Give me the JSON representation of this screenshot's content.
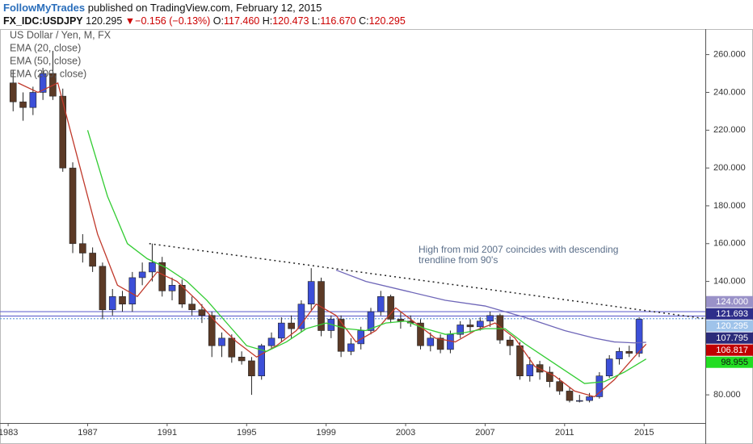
{
  "header": {
    "author": "FollowMyTrades",
    "published": "published on TradingView.com, February 12, 2015"
  },
  "quote": {
    "symbol": "FX_IDC:USDJPY",
    "last": "120.295",
    "arrow": "▼",
    "change": "−0.156 (−0.13%)",
    "fields": [
      {
        "label": "O:",
        "value": "117.460"
      },
      {
        "label": "H:",
        "value": "120.473"
      },
      {
        "label": "L:",
        "value": "116.670"
      },
      {
        "label": "C:",
        "value": "120.295"
      }
    ]
  },
  "chart_data": {
    "type": "candlestick",
    "title": "US Dollar / Yen, M, FX",
    "x": [
      1983.0,
      1983.5,
      1984.0,
      1984.5,
      1985.0,
      1985.5,
      1986.0,
      1986.5,
      1987.0,
      1987.5,
      1988.0,
      1988.5,
      1989.0,
      1989.5,
      1990.0,
      1990.5,
      1991.0,
      1991.5,
      1992.0,
      1992.5,
      1993.0,
      1993.5,
      1994.0,
      1994.5,
      1995.0,
      1995.5,
      1996.0,
      1996.5,
      1997.0,
      1997.5,
      1998.0,
      1998.5,
      1999.0,
      1999.5,
      2000.0,
      2000.5,
      2001.0,
      2001.5,
      2002.0,
      2002.5,
      2003.0,
      2003.5,
      2004.0,
      2004.5,
      2005.0,
      2005.5,
      2006.0,
      2006.5,
      2007.0,
      2007.5,
      2008.0,
      2008.5,
      2009.0,
      2009.5,
      2010.0,
      2010.5,
      2011.0,
      2011.5,
      2012.0,
      2012.5,
      2013.0,
      2013.5,
      2014.0,
      2014.5
    ],
    "open": [
      245,
      235,
      232,
      240,
      250,
      238,
      200,
      160,
      155,
      148,
      125,
      132,
      128,
      142,
      145,
      150,
      135,
      138,
      128,
      125,
      122,
      106,
      110,
      100,
      98,
      90,
      106,
      110,
      118,
      115,
      128,
      140,
      114,
      120,
      103,
      107,
      114,
      124,
      132,
      120,
      119,
      118,
      106,
      110,
      104,
      112,
      117,
      116,
      119,
      122,
      109,
      106,
      90,
      96,
      92,
      87,
      82,
      77,
      77,
      79,
      90,
      99,
      103,
      102
    ],
    "high": [
      252,
      240,
      243,
      253,
      262,
      242,
      203,
      165,
      158,
      150,
      136,
      135,
      145,
      150,
      160,
      153,
      142,
      141,
      132,
      128,
      124,
      113,
      112,
      103,
      100,
      107,
      113,
      121,
      122,
      130,
      147,
      142,
      122,
      122,
      110,
      116,
      126,
      135,
      133,
      124,
      122,
      120,
      113,
      112,
      114,
      119,
      120,
      121,
      124,
      123,
      111,
      108,
      100,
      98,
      95,
      89,
      84,
      80,
      81,
      92,
      101,
      105,
      106,
      121
    ],
    "low": [
      230,
      225,
      228,
      236,
      236,
      198,
      155,
      150,
      145,
      120,
      122,
      124,
      124,
      138,
      140,
      132,
      130,
      126,
      122,
      118,
      100,
      100,
      97,
      96,
      80,
      88,
      104,
      108,
      110,
      113,
      125,
      111,
      110,
      100,
      101,
      104,
      112,
      122,
      118,
      115,
      116,
      104,
      103,
      102,
      102,
      110,
      113,
      114,
      116,
      107,
      101,
      88,
      87,
      88,
      84,
      80,
      76,
      76,
      76,
      78,
      89,
      96,
      100,
      100
    ],
    "close": [
      235,
      232,
      240,
      250,
      238,
      200,
      160,
      155,
      148,
      125,
      132,
      128,
      142,
      145,
      150,
      135,
      138,
      128,
      125,
      122,
      106,
      110,
      100,
      98,
      90,
      106,
      110,
      118,
      115,
      128,
      140,
      114,
      120,
      103,
      107,
      114,
      124,
      132,
      120,
      119,
      118,
      106,
      110,
      104,
      112,
      117,
      116,
      119,
      122,
      109,
      106,
      90,
      96,
      92,
      87,
      82,
      77,
      77,
      79,
      90,
      99,
      103,
      102,
      120
    ],
    "up_color": "#3c4fd8",
    "down_color": "#5c3a26",
    "overlays": [
      {
        "name": "EMA (20, close)",
        "color": "#c0392b",
        "x": [
          1983.5,
          1984.5,
          1985.5,
          1986.5,
          1987.5,
          1988.5,
          1989.5,
          1990.5,
          1991.5,
          1992.5,
          1993.5,
          1994.5,
          1995.5,
          1996.5,
          1997.5,
          1998.5,
          1999.5,
          2000.5,
          2001.5,
          2002.5,
          2003.5,
          2004.5,
          2005.5,
          2006.5,
          2007.5,
          2008.5,
          2009.5,
          2010.5,
          2011.5,
          2012.5,
          2013.5,
          2014.5,
          2015.1
        ],
        "values": [
          245,
          240,
          245,
          205,
          165,
          138,
          132,
          145,
          140,
          130,
          118,
          108,
          100,
          106,
          114,
          128,
          122,
          108,
          114,
          126,
          118,
          110,
          108,
          114,
          118,
          110,
          95,
          90,
          82,
          79,
          88,
          100,
          106.817
        ]
      },
      {
        "name": "EMA (50, close)",
        "color": "#33cc33",
        "x": [
          1987.0,
          1988.0,
          1989.0,
          1990.0,
          1991.0,
          1992.0,
          1993.0,
          1994.0,
          1995.0,
          1996.0,
          1997.0,
          1998.0,
          1999.0,
          2000.0,
          2001.0,
          2002.0,
          2003.0,
          2004.0,
          2005.0,
          2006.0,
          2007.0,
          2008.0,
          2009.0,
          2010.0,
          2011.0,
          2012.0,
          2013.0,
          2014.0,
          2015.1
        ],
        "values": [
          220,
          185,
          160,
          152,
          147,
          140,
          130,
          118,
          106,
          103,
          108,
          115,
          118,
          115,
          114,
          118,
          119,
          115,
          112,
          113,
          115,
          115,
          107,
          100,
          93,
          86,
          87,
          92,
          98.955
        ]
      },
      {
        "name": "EMA (200, close)",
        "color": "#6e66b8",
        "x": [
          1999.5,
          2001.0,
          2003.0,
          2005.0,
          2007.0,
          2009.0,
          2011.0,
          2012.5,
          2013.5,
          2014.5,
          2015.1
        ],
        "values": [
          146,
          140,
          135,
          130,
          127,
          121,
          114,
          110,
          108,
          107.5,
          107.795
        ]
      }
    ],
    "trendline": {
      "x": [
        1990.1,
        2018.08
      ],
      "values": [
        160,
        120.3
      ],
      "color": "#222222"
    },
    "annotation": "High from mid 2007 coincides with descending trendline from 90's",
    "xlim": [
      1982.59,
      2018.08
    ],
    "xticks": [
      {
        "value": 1983,
        "label": "1983"
      },
      {
        "value": 1987,
        "label": "1987"
      },
      {
        "value": 1991,
        "label": "1991"
      },
      {
        "value": 1995,
        "label": "1995"
      },
      {
        "value": 1999,
        "label": "1999"
      },
      {
        "value": 2003,
        "label": "2003"
      },
      {
        "value": 2007,
        "label": "2007"
      },
      {
        "value": 2011,
        "label": "2011"
      },
      {
        "value": 2015,
        "label": "2015"
      }
    ],
    "ylim": [
      65.1,
      273.5
    ],
    "yticks": [
      {
        "value": 80,
        "label": "80.000"
      },
      {
        "value": 140,
        "label": "140.000"
      },
      {
        "value": 160,
        "label": "160.000"
      },
      {
        "value": 180,
        "label": "180.000"
      },
      {
        "value": 200,
        "label": "200.000"
      },
      {
        "value": 220,
        "label": "220.000"
      },
      {
        "value": 240,
        "label": "240.000"
      },
      {
        "value": 260,
        "label": "260.000"
      }
    ],
    "price_labels": [
      {
        "value": 124,
        "label": "124.000",
        "color": "#9a92c8",
        "text_color": "#ffffff",
        "line": "solid"
      },
      {
        "value": 121.693,
        "label": "121.693",
        "color": "#2e2e8a",
        "text_color": "#ffffff",
        "line": "solid"
      },
      {
        "value": 120.295,
        "label": "120.295",
        "color": "#9fc3ea",
        "text_color": "#ffffff",
        "line": "dotted"
      },
      {
        "value": 107.795,
        "label": "107.795",
        "color": "#2b2b7a",
        "text_color": "#ffffff",
        "line": "none"
      },
      {
        "value": 106.817,
        "label": "106.817",
        "color": "#c00000",
        "text_color": "#ffffff",
        "line": "none"
      },
      {
        "value": 98.955,
        "label": "98.955",
        "color": "#22dd22",
        "text_color": "#111111",
        "line": "none"
      }
    ]
  }
}
